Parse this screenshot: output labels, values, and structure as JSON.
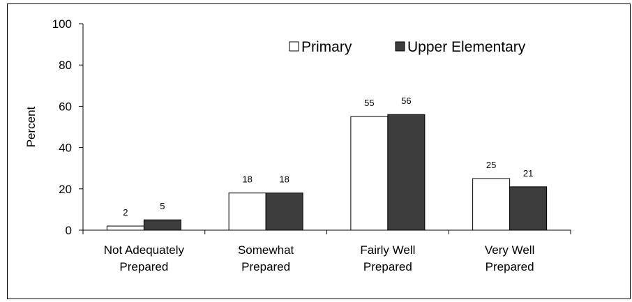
{
  "chart_data": {
    "type": "bar",
    "ylabel": "Percent",
    "ylim": [
      0,
      100
    ],
    "yticks": [
      0,
      20,
      40,
      60,
      80,
      100
    ],
    "categories": [
      [
        "Not Adequately",
        "Prepared"
      ],
      [
        "Somewhat",
        "Prepared"
      ],
      [
        "Fairly Well",
        "Prepared"
      ],
      [
        "Very Well",
        "Prepared"
      ]
    ],
    "series": [
      {
        "name": "Primary",
        "values": [
          2,
          18,
          55,
          25
        ],
        "color": "#ffffff"
      },
      {
        "name": "Upper Elementary",
        "values": [
          5,
          18,
          56,
          21
        ],
        "color": "#3d3d3d"
      }
    ],
    "grid": false,
    "legend_position": "top-right"
  }
}
